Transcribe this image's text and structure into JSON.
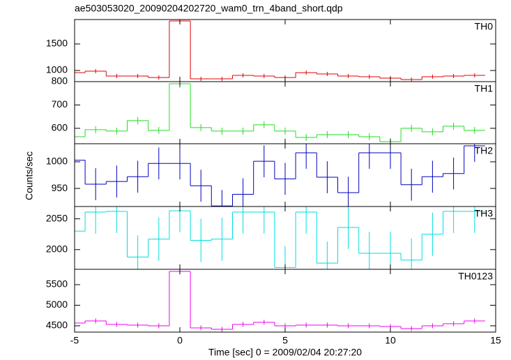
{
  "chart_data": [
    {
      "type": "step",
      "title": "ae503053020_20090204202720_wam0_trn_4band_short.qdp",
      "label": "TH0",
      "color": "#e00000",
      "x": [
        -5,
        -4,
        -3,
        -2,
        -1,
        0,
        1,
        2,
        3,
        4,
        5,
        6,
        7,
        8,
        9,
        10,
        11,
        12,
        13,
        14
      ],
      "values": [
        960,
        987,
        895,
        895,
        868,
        1934,
        842,
        842,
        908,
        895,
        868,
        960,
        934,
        895,
        882,
        855,
        829,
        882,
        895,
        908
      ],
      "errors": [
        40,
        40,
        40,
        40,
        40,
        55,
        40,
        40,
        40,
        40,
        40,
        40,
        40,
        40,
        40,
        40,
        40,
        40,
        40,
        40
      ],
      "xlim": [
        -5,
        15
      ],
      "xticks": [
        -5,
        0,
        5,
        10,
        15
      ],
      "ylim": [
        790,
        1960
      ],
      "yticks": [
        1000,
        1500
      ]
    },
    {
      "type": "step",
      "label": "TH1",
      "color": "#22dd22",
      "x": [
        -5,
        -4,
        -3,
        -2,
        -1,
        0,
        1,
        2,
        3,
        4,
        5,
        6,
        7,
        8,
        9,
        10,
        11,
        12,
        13,
        14
      ],
      "values": [
        564,
        594,
        588,
        633,
        591,
        791,
        603,
        588,
        588,
        615,
        588,
        561,
        573,
        573,
        564,
        543,
        600,
        585,
        609,
        591
      ],
      "errors": [
        15,
        15,
        15,
        16,
        15,
        18,
        15,
        15,
        15,
        15,
        15,
        15,
        15,
        15,
        15,
        15,
        15,
        15,
        15,
        15
      ],
      "xlim": [
        -5,
        15
      ],
      "xticks": [
        -5,
        0,
        5,
        10,
        15
      ],
      "ylim": [
        534,
        800
      ],
      "yticks": [
        600,
        700,
        800
      ]
    },
    {
      "type": "step",
      "label": "TH2",
      "color": "#0000c0",
      "y_label": "Counts/sec",
      "x": [
        -5,
        -4,
        -3,
        -2,
        -1,
        0,
        1,
        2,
        3,
        4,
        5,
        6,
        7,
        8,
        9,
        10,
        11,
        12,
        13,
        14
      ],
      "values": [
        1003,
        958,
        963,
        972,
        997,
        997,
        955,
        917,
        939,
        1001,
        968,
        1017,
        971,
        942,
        1017,
        1017,
        957,
        972,
        978,
        1030
      ],
      "errors": [
        30,
        30,
        30,
        30,
        30,
        30,
        30,
        30,
        30,
        30,
        30,
        30,
        30,
        30,
        30,
        30,
        30,
        30,
        30,
        30
      ],
      "xlim": [
        -5,
        15
      ],
      "xticks": [
        -5,
        0,
        5,
        10,
        15
      ],
      "ylim": [
        916,
        1034
      ],
      "yticks": [
        950,
        1000
      ]
    },
    {
      "type": "step",
      "label": "TH3",
      "color": "#00dddd",
      "x": [
        -5,
        -4,
        -3,
        -2,
        -1,
        0,
        1,
        2,
        3,
        4,
        5,
        6,
        7,
        8,
        9,
        10,
        11,
        12,
        13,
        14
      ],
      "values": [
        2030,
        2061,
        2062,
        1988,
        2017,
        2063,
        2015,
        2017,
        2061,
        2061,
        1971,
        2061,
        1978,
        2036,
        1994,
        1994,
        1983,
        2025,
        2062,
        2062
      ],
      "errors": [
        35,
        35,
        35,
        35,
        35,
        35,
        35,
        35,
        35,
        35,
        35,
        35,
        35,
        35,
        35,
        35,
        35,
        35,
        35,
        35
      ],
      "xlim": [
        -5,
        15
      ],
      "xticks": [
        -5,
        0,
        5,
        10,
        15
      ],
      "ylim": [
        1968,
        2070
      ],
      "yticks": [
        2000,
        2050
      ]
    },
    {
      "type": "step",
      "label": "TH0123",
      "color": "#ee00ee",
      "x_label": "Time [sec] 0 = 2009/02/04 20:27:20",
      "x": [
        -5,
        -4,
        -3,
        -2,
        -1,
        0,
        1,
        2,
        3,
        4,
        5,
        6,
        7,
        8,
        9,
        10,
        11,
        12,
        13,
        14
      ],
      "values": [
        4568,
        4619,
        4534,
        4517,
        4500,
        5822,
        4449,
        4415,
        4534,
        4585,
        4500,
        4517,
        4517,
        4500,
        4500,
        4483,
        4432,
        4500,
        4551,
        4619
      ],
      "errors": [
        60,
        60,
        60,
        60,
        60,
        75,
        60,
        60,
        60,
        60,
        60,
        60,
        60,
        60,
        60,
        60,
        60,
        60,
        60,
        60
      ],
      "xlim": [
        -5,
        15
      ],
      "xticks": [
        -5,
        0,
        5,
        10,
        15
      ],
      "ylim": [
        4347,
        5873
      ],
      "yticks": [
        4500,
        5000,
        5500
      ]
    }
  ]
}
